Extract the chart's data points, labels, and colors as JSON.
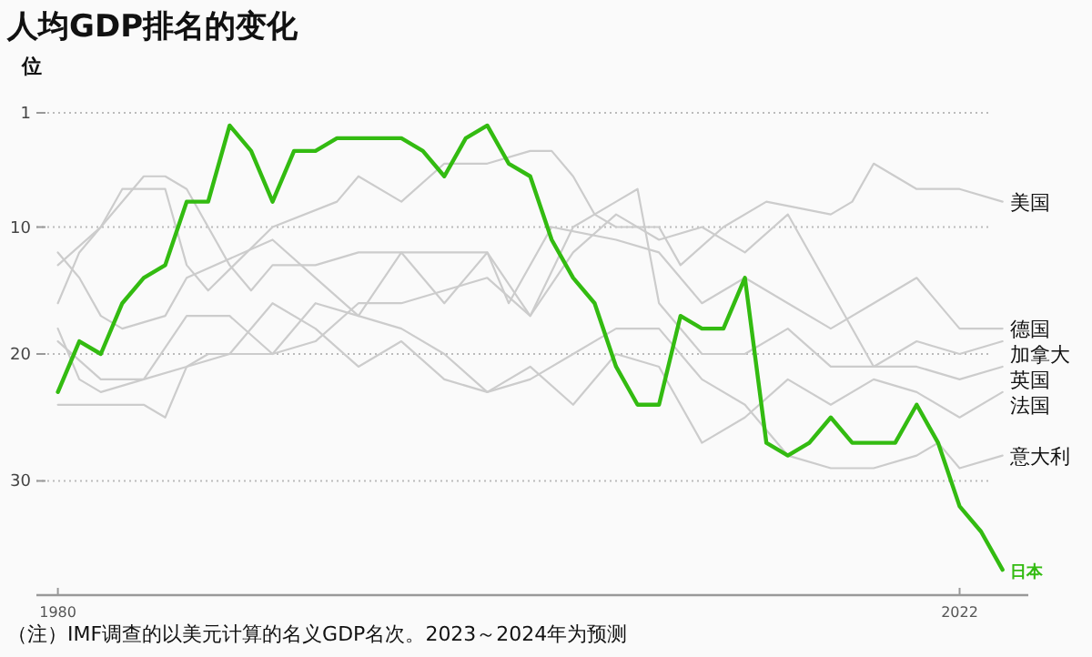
{
  "chart_data": {
    "type": "line",
    "title": "人均GDP排名的变化",
    "ylabel": "位",
    "xlim": [
      1979,
      2025.2
    ],
    "xticks": [
      1980,
      2022
    ],
    "ylim": [
      39,
      1
    ],
    "yticks": [
      1,
      10,
      20,
      30
    ],
    "grid": "y",
    "marker": "none",
    "annotations": [
      "（注）IMF调查的以美元计算的名义GDP名次。2023～2024年为预测"
    ],
    "series": [
      {
        "name": "美国",
        "color": "#cccccc",
        "x": [
          1980,
          1982,
          1983,
          1985,
          1986,
          1987,
          1990,
          1993,
          1994,
          1996,
          1998,
          2000,
          2002,
          2003,
          2004,
          2005,
          2006,
          2008,
          2009,
          2011,
          2013,
          2016,
          2017,
          2018,
          2019,
          2020,
          2022,
          2024
        ],
        "values": [
          13,
          10,
          7,
          7,
          13,
          15,
          10,
          8,
          6,
          8,
          5,
          5,
          4,
          4,
          6,
          9,
          10,
          10,
          13,
          10,
          8,
          9,
          8,
          5,
          6,
          7,
          7,
          8
        ]
      },
      {
        "name": "德国",
        "color": "#cccccc",
        "x": [
          1980,
          1981,
          1982,
          1983,
          1985,
          1986,
          1990,
          1992,
          1994,
          1996,
          1998,
          2000,
          2001,
          2003,
          2006,
          2008,
          2010,
          2012,
          2014,
          2016,
          2018,
          2020,
          2022,
          2024
        ],
        "values": [
          12,
          14,
          17,
          18,
          17,
          14,
          11,
          14,
          17,
          12,
          12,
          12,
          16,
          10,
          11,
          12,
          16,
          14,
          16,
          18,
          16,
          14,
          18,
          18
        ]
      },
      {
        "name": "加拿大",
        "color": "#cccccc",
        "x": [
          1980,
          1981,
          1982,
          1984,
          1985,
          1986,
          1988,
          1989,
          1990,
          1992,
          1994,
          1996,
          1998,
          2000,
          2002,
          2004,
          2006,
          2008,
          2010,
          2012,
          2014,
          2016,
          2018,
          2020,
          2022,
          2024
        ],
        "values": [
          16,
          12,
          10,
          6,
          6,
          7,
          13,
          15,
          13,
          13,
          12,
          12,
          16,
          12,
          17,
          12,
          9,
          11,
          10,
          12,
          9,
          15,
          21,
          19,
          20,
          19
        ]
      },
      {
        "name": "英国",
        "color": "#cccccc",
        "x": [
          1980,
          1981,
          1982,
          1984,
          1985,
          1986,
          1987,
          1988,
          1990,
          1992,
          1994,
          1996,
          1998,
          2000,
          2002,
          2004,
          2006,
          2007,
          2008,
          2010,
          2012,
          2014,
          2016,
          2018,
          2020,
          2022,
          2024
        ],
        "values": [
          24,
          24,
          24,
          24,
          25,
          21,
          20,
          20,
          20,
          19,
          16,
          16,
          15,
          14,
          17,
          10,
          8,
          7,
          16,
          20,
          20,
          18,
          21,
          21,
          21,
          22,
          21
        ]
      },
      {
        "name": "法国",
        "color": "#cccccc",
        "x": [
          1980,
          1981,
          1982,
          1984,
          1986,
          1988,
          1990,
          1992,
          1994,
          1996,
          1998,
          2000,
          2002,
          2004,
          2006,
          2008,
          2010,
          2012,
          2014,
          2016,
          2018,
          2020,
          2022,
          2024
        ],
        "values": [
          18,
          22,
          23,
          22,
          17,
          17,
          20,
          16,
          17,
          18,
          20,
          23,
          21,
          24,
          20,
          21,
          27,
          25,
          22,
          24,
          22,
          23,
          25,
          23
        ]
      },
      {
        "name": "意大利",
        "color": "#cccccc",
        "x": [
          1980,
          1982,
          1984,
          1986,
          1988,
          1990,
          1992,
          1994,
          1996,
          1998,
          2000,
          2002,
          2004,
          2006,
          2008,
          2010,
          2012,
          2014,
          2016,
          2018,
          2020,
          2021,
          2022,
          2024
        ],
        "values": [
          19,
          22,
          22,
          21,
          20,
          16,
          18,
          21,
          19,
          22,
          23,
          22,
          20,
          18,
          18,
          22,
          24,
          28,
          29,
          29,
          28,
          27,
          29,
          28
        ]
      },
      {
        "name": "日本",
        "color": "#33bb11",
        "x": [
          1980,
          1981,
          1982,
          1983,
          1984,
          1985,
          1986,
          1987,
          1988,
          1989,
          1990,
          1991,
          1992,
          1993,
          1994,
          1995,
          1996,
          1997,
          1998,
          1999,
          2000,
          2001,
          2002,
          2003,
          2004,
          2005,
          2006,
          2007,
          2008,
          2009,
          2010,
          2011,
          2012,
          2013,
          2014,
          2015,
          2016,
          2017,
          2018,
          2019,
          2020,
          2021,
          2022,
          2023,
          2024
        ],
        "values": [
          23,
          19,
          20,
          16,
          14,
          13,
          8,
          8,
          2,
          4,
          8,
          4,
          4,
          3,
          3,
          3,
          3,
          4,
          6,
          3,
          2,
          5,
          6,
          11,
          14,
          16,
          21,
          24,
          24,
          17,
          18,
          18,
          14,
          27,
          28,
          27,
          25,
          27,
          27,
          27,
          24,
          27,
          32,
          34,
          37
        ]
      }
    ]
  }
}
